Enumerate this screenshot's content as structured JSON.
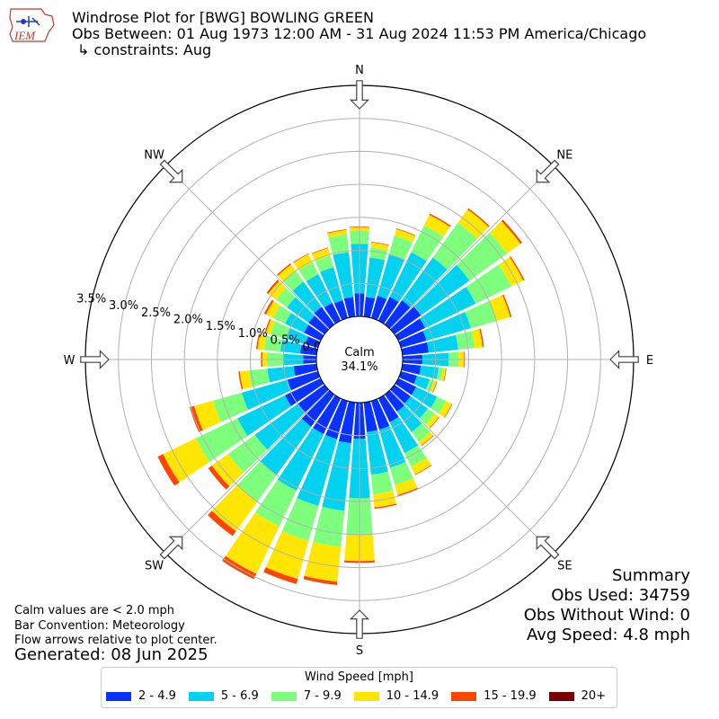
{
  "header": {
    "logo_text": "IEM",
    "title": "Windrose Plot for [BWG] BOWLING GREEN",
    "subtitle": "Obs Between: 01 Aug 1973 12:00 AM - 31 Aug 2024 11:53 PM America/Chicago",
    "constraints": "↳ constraints: Aug"
  },
  "notes": {
    "calm_def": "Calm values are < 2.0 mph",
    "bar_convention": "Bar Convention: Meteorology",
    "flow": "Flow arrows relative to plot center.",
    "generated": "Generated: 08 Jun 2025"
  },
  "summary": {
    "title": "Summary",
    "obs_used": "Obs Used: 34759",
    "obs_without_wind": "Obs Without Wind: 0",
    "avg_speed": "Avg Speed: 4.8 mph"
  },
  "legend": {
    "title": "Wind Speed [mph]",
    "items": [
      {
        "label": "2 - 4.9",
        "color": "#0a32ff"
      },
      {
        "label": "5 - 6.9",
        "color": "#00d2f0"
      },
      {
        "label": "7 - 9.9",
        "color": "#7dff7d"
      },
      {
        "label": "10 - 14.9",
        "color": "#ffe600"
      },
      {
        "label": "15 - 19.9",
        "color": "#ff4600"
      },
      {
        "label": "20+",
        "color": "#780000"
      }
    ]
  },
  "chart_data": {
    "type": "windrose",
    "center_label": "Calm",
    "calm_value": "34.1%",
    "directions": [
      "N",
      "NE",
      "E",
      "SE",
      "S",
      "SW",
      "W",
      "NW"
    ],
    "radial_ticks": [
      "0.0%",
      "0.5%",
      "1.0%",
      "1.5%",
      "2.0%",
      "2.5%",
      "3.0%",
      "3.5%"
    ],
    "radial_max": 3.5,
    "bins": [
      "2 - 4.9",
      "5 - 6.9",
      "7 - 9.9",
      "10 - 14.9",
      "15 - 19.9",
      "20+"
    ],
    "colors": [
      "#0a32ff",
      "#00d2f0",
      "#7dff7d",
      "#ffe600",
      "#ff4600",
      "#780000"
    ],
    "sector_centers_deg": [
      0,
      10,
      20,
      30,
      40,
      50,
      60,
      70,
      80,
      90,
      100,
      110,
      120,
      130,
      140,
      150,
      160,
      170,
      180,
      190,
      200,
      210,
      220,
      230,
      240,
      250,
      260,
      270,
      280,
      290,
      300,
      310,
      320,
      330,
      340,
      350
    ],
    "cumulative_percent": [
      [
        0.35,
        1.1,
        1.3,
        1.35,
        1.36,
        1.36
      ],
      [
        0.3,
        0.9,
        1.05,
        1.13,
        1.14,
        1.14
      ],
      [
        0.35,
        1.0,
        1.3,
        1.4,
        1.41,
        1.41
      ],
      [
        0.4,
        1.15,
        1.6,
        1.78,
        1.8,
        1.8
      ],
      [
        0.45,
        1.25,
        1.9,
        2.15,
        2.17,
        2.17
      ],
      [
        0.5,
        1.4,
        2.1,
        2.35,
        2.38,
        2.38
      ],
      [
        0.45,
        1.3,
        1.9,
        2.1,
        2.12,
        2.12
      ],
      [
        0.4,
        1.1,
        1.5,
        1.72,
        1.74,
        1.74
      ],
      [
        0.4,
        0.85,
        1.1,
        1.22,
        1.24,
        1.24
      ],
      [
        0.3,
        0.7,
        0.85,
        0.93,
        0.94,
        0.94
      ],
      [
        0.28,
        0.55,
        0.62,
        0.66,
        0.67,
        0.67
      ],
      [
        0.25,
        0.45,
        0.52,
        0.56,
        0.57,
        0.57
      ],
      [
        0.3,
        0.65,
        0.8,
        0.9,
        0.91,
        0.91
      ],
      [
        0.3,
        0.62,
        0.75,
        0.83,
        0.84,
        0.84
      ],
      [
        0.32,
        0.7,
        0.88,
        0.95,
        0.96,
        0.96
      ],
      [
        0.4,
        0.92,
        1.15,
        1.28,
        1.29,
        1.29
      ],
      [
        0.45,
        1.05,
        1.32,
        1.48,
        1.5,
        1.5
      ],
      [
        0.45,
        1.1,
        1.4,
        1.6,
        1.62,
        1.62
      ],
      [
        0.55,
        1.45,
        2.0,
        2.4,
        2.43,
        2.43
      ],
      [
        0.62,
        1.65,
        2.2,
        2.73,
        2.78,
        2.78
      ],
      [
        0.6,
        1.65,
        2.2,
        2.8,
        2.88,
        2.88
      ],
      [
        0.6,
        1.55,
        2.15,
        2.95,
        3.04,
        3.04
      ],
      [
        0.6,
        1.5,
        2.0,
        2.55,
        2.64,
        2.64
      ],
      [
        0.5,
        1.3,
        1.8,
        2.1,
        2.17,
        2.17
      ],
      [
        0.6,
        1.4,
        2.1,
        2.65,
        2.74,
        2.74
      ],
      [
        0.48,
        1.2,
        1.65,
        1.95,
        2.02,
        2.02
      ],
      [
        0.35,
        0.75,
        1.03,
        1.17,
        1.19,
        1.19
      ],
      [
        0.2,
        0.5,
        0.75,
        0.82,
        0.84,
        0.84
      ],
      [
        0.25,
        0.55,
        0.8,
        0.9,
        0.92,
        0.92
      ],
      [
        0.2,
        0.5,
        0.75,
        0.82,
        0.84,
        0.84
      ],
      [
        0.28,
        0.6,
        0.8,
        0.92,
        0.95,
        0.95
      ],
      [
        0.3,
        0.7,
        0.9,
        1.05,
        1.08,
        1.08
      ],
      [
        0.33,
        0.8,
        1.0,
        1.12,
        1.14,
        1.14
      ],
      [
        0.3,
        0.78,
        0.98,
        1.12,
        1.13,
        1.13
      ],
      [
        0.28,
        0.8,
        0.98,
        1.1,
        1.11,
        1.11
      ],
      [
        0.3,
        0.98,
        1.25,
        1.32,
        1.33,
        1.33
      ]
    ]
  }
}
